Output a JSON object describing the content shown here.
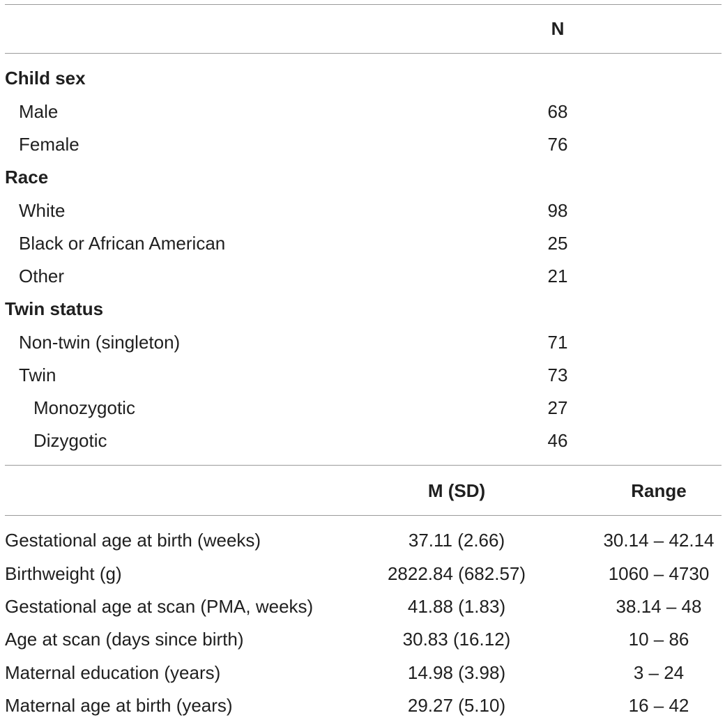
{
  "table1": {
    "header": {
      "n": "N"
    },
    "groups": [
      {
        "label": "Child sex",
        "items": [
          {
            "label": "Male",
            "n": "68"
          },
          {
            "label": "Female",
            "n": "76"
          }
        ]
      },
      {
        "label": "Race",
        "items": [
          {
            "label": "White",
            "n": "98"
          },
          {
            "label": "Black or African American",
            "n": "25"
          },
          {
            "label": "Other",
            "n": "21"
          }
        ]
      },
      {
        "label": "Twin status",
        "items": [
          {
            "label": "Non-twin (singleton)",
            "n": "71"
          },
          {
            "label": "Twin",
            "n": "73"
          },
          {
            "label": "Monozygotic",
            "n": "27"
          },
          {
            "label": "Dizygotic",
            "n": "46"
          }
        ]
      }
    ]
  },
  "table2": {
    "header": {
      "m_sd": "M (SD)",
      "range": "Range"
    },
    "rows": [
      {
        "label": "Gestational age at birth (weeks)",
        "m_sd": "37.11 (2.66)",
        "range": "30.14 – 42.14"
      },
      {
        "label": "Birthweight (g)",
        "m_sd": "2822.84 (682.57)",
        "range": "1060 – 4730"
      },
      {
        "label": "Gestational age at scan (PMA, weeks)",
        "m_sd": "41.88 (1.83)",
        "range": "38.14 – 48"
      },
      {
        "label": "Age at scan (days since birth)",
        "m_sd": "30.83 (16.12)",
        "range": "10 – 86"
      },
      {
        "label": "Maternal education (years)",
        "m_sd": "14.98 (3.98)",
        "range": "3 – 24"
      },
      {
        "label": "Maternal age at birth (years)",
        "m_sd": "29.27 (5.10)",
        "range": "16 – 42"
      }
    ]
  }
}
